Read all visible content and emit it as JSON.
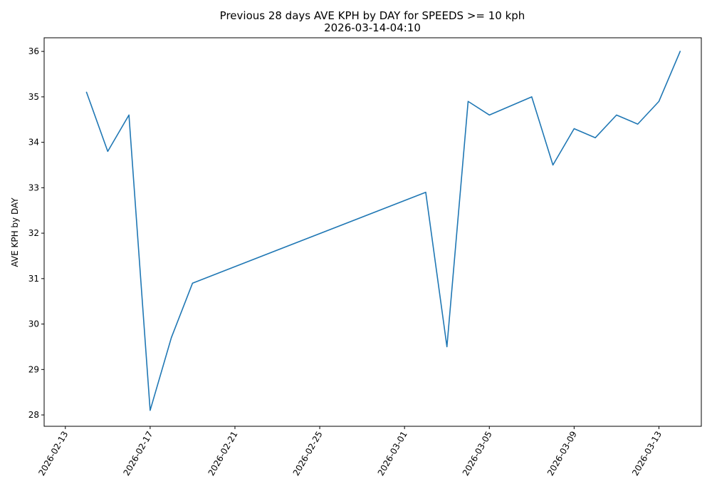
{
  "chart_data": {
    "type": "line",
    "title": "Previous 28 days AVE KPH by DAY for SPEEDS >= 10 kph",
    "subtitle": "2026-03-14-04:10",
    "xlabel": "",
    "ylabel": "AVE KPH by DAY",
    "x_axis_type": "date",
    "xlim": [
      "2026-02-12",
      "2026-03-15"
    ],
    "ylim": [
      27.75,
      36.3
    ],
    "x_ticks": [
      "2026-02-13",
      "2026-02-17",
      "2026-02-21",
      "2026-02-25",
      "2026-03-01",
      "2026-03-05",
      "2026-03-09",
      "2026-03-13"
    ],
    "y_ticks": [
      28,
      29,
      30,
      31,
      32,
      33,
      34,
      35,
      36
    ],
    "grid": false,
    "legend": "none",
    "line_color": "#1f77b4",
    "series": [
      {
        "x": [
          "2026-02-14",
          "2026-02-15",
          "2026-02-16",
          "2026-02-17",
          "2026-02-18",
          "2026-02-19",
          "2026-03-02",
          "2026-03-03",
          "2026-03-04",
          "2026-03-05",
          "2026-03-07",
          "2026-03-08",
          "2026-03-09",
          "2026-03-10",
          "2026-03-11",
          "2026-03-12",
          "2026-03-13",
          "2026-03-14"
        ],
        "values": [
          35.1,
          33.8,
          34.6,
          28.1,
          29.7,
          30.9,
          32.9,
          29.5,
          34.9,
          34.6,
          35.0,
          33.5,
          34.3,
          34.1,
          34.6,
          34.4,
          34.9,
          36.0
        ]
      }
    ]
  }
}
